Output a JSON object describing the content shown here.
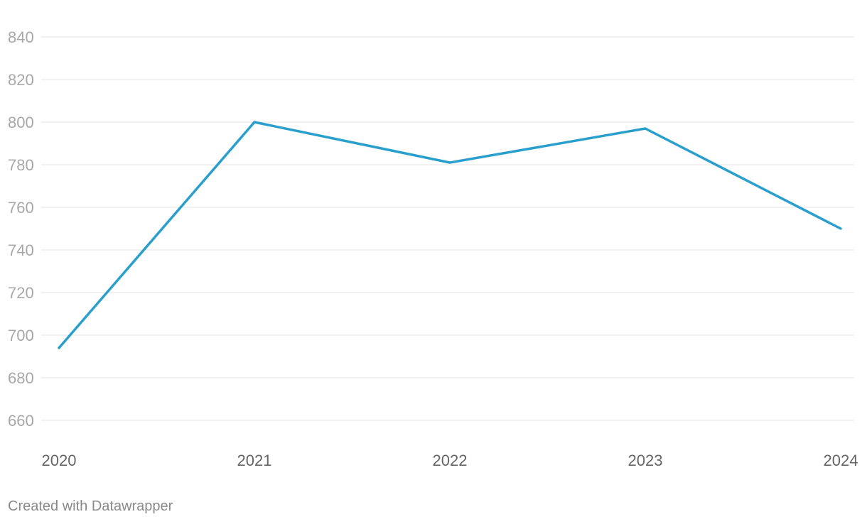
{
  "chart_data": {
    "type": "line",
    "x": [
      "2020",
      "2021",
      "2022",
      "2023",
      "2024"
    ],
    "series": [
      {
        "values": [
          694,
          800,
          781,
          797,
          750
        ]
      }
    ],
    "y_ticks": [
      840,
      820,
      800,
      780,
      760,
      740,
      720,
      700,
      680,
      660
    ],
    "ylim": [
      660,
      840
    ],
    "grid": true,
    "line_color": "#2a9fcc"
  },
  "footer": {
    "credit": "Created with Datawrapper"
  }
}
